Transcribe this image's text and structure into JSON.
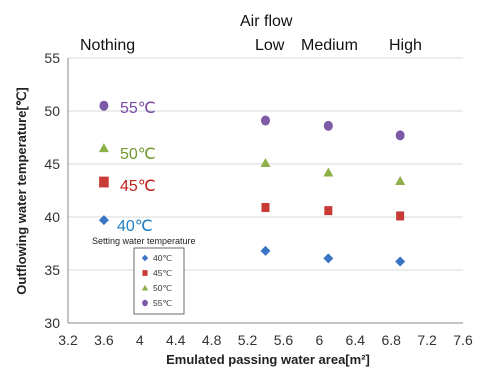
{
  "chart_data": {
    "type": "scatter",
    "xlabel": "Emulated passing water area[m²]",
    "ylabel": "Outflowing water temperature[℃]",
    "xlim": [
      3.2,
      7.6
    ],
    "ylim": [
      30,
      55
    ],
    "xticks": [
      "3.2",
      "3.6",
      "4",
      "4.4",
      "4.8",
      "5.2",
      "5.6",
      "6",
      "6.4",
      "6.8",
      "7.2",
      "7.6"
    ],
    "yticks": [
      "30",
      "35",
      "40",
      "45",
      "50",
      "55"
    ],
    "grid": "horizontal",
    "top_labels": {
      "airflow": "Air flow",
      "nothing": "Nothing",
      "low": "Low",
      "medium": "Medium",
      "high": "High"
    },
    "note": "Setting water temperature",
    "legend_position": "bottom-left",
    "series": [
      {
        "name": "40℃",
        "marker": "diamond",
        "color": "#3a74c4",
        "points": [
          [
            3.6,
            39.7
          ],
          [
            5.4,
            36.8
          ],
          [
            6.1,
            36.1
          ],
          [
            6.9,
            35.8
          ]
        ],
        "label": "40℃",
        "label_color": "#1f7fc4"
      },
      {
        "name": "45℃",
        "marker": "square",
        "color": "#c83a36",
        "points": [
          [
            3.6,
            43.3
          ],
          [
            5.4,
            40.9
          ],
          [
            6.1,
            40.6
          ],
          [
            6.9,
            40.1
          ]
        ],
        "label": "45℃",
        "label_color": "#c0201c"
      },
      {
        "name": "50℃",
        "marker": "triangle",
        "color": "#8db04a",
        "points": [
          [
            3.6,
            46.5
          ],
          [
            5.4,
            45.1
          ],
          [
            6.1,
            44.2
          ],
          [
            6.9,
            43.4
          ]
        ],
        "label": "50℃",
        "label_color": "#6f9a2c"
      },
      {
        "name": "55℃",
        "marker": "circle",
        "color": "#7d5aa6",
        "points": [
          [
            3.6,
            50.5
          ],
          [
            5.4,
            49.1
          ],
          [
            6.1,
            48.6
          ],
          [
            6.9,
            47.7
          ]
        ],
        "label": "55℃",
        "label_color": "#7a4aa6"
      }
    ]
  }
}
